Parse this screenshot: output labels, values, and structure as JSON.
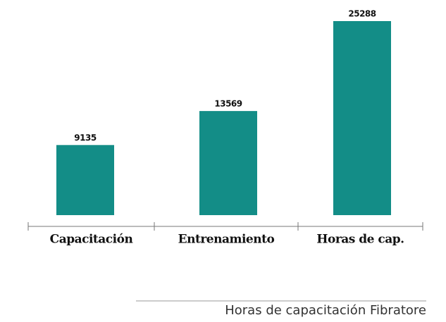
{
  "chart_data": {
    "type": "bar",
    "categories": [
      "Capacitación",
      "Entrenamiento",
      "Horas de cap."
    ],
    "values": [
      9135,
      13569,
      25288
    ],
    "color": "#138d87",
    "caption": "Horas de capacitación Fibratore"
  }
}
